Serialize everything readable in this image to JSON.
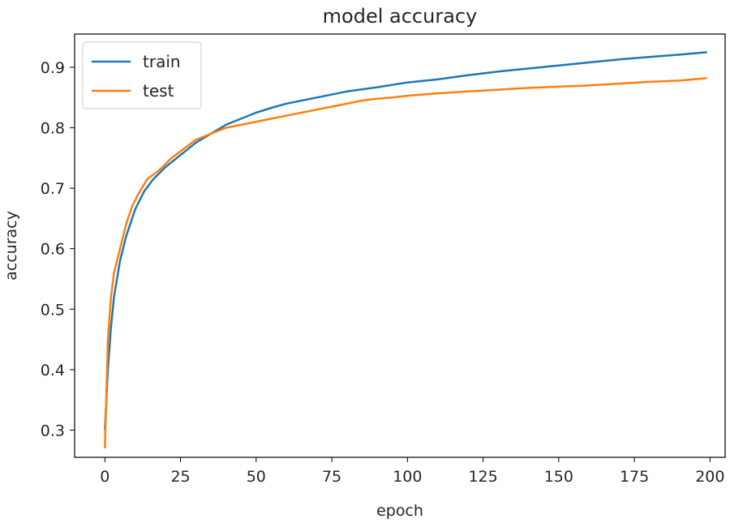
{
  "chart_data": {
    "type": "line",
    "title": "model accuracy",
    "xlabel": "epoch",
    "ylabel": "accuracy",
    "xlim": [
      -10,
      205
    ],
    "ylim": [
      0.255,
      0.955
    ],
    "xticks": [
      0,
      25,
      50,
      75,
      100,
      125,
      150,
      175,
      200
    ],
    "yticks": [
      0.3,
      0.4,
      0.5,
      0.6,
      0.7,
      0.8,
      0.9
    ],
    "grid": false,
    "legend_position": "top-left",
    "series": [
      {
        "name": "train",
        "color": "#1f77b4",
        "points": [
          [
            0,
            0.3
          ],
          [
            1,
            0.4
          ],
          [
            2,
            0.47
          ],
          [
            3,
            0.52
          ],
          [
            5,
            0.58
          ],
          [
            7,
            0.62
          ],
          [
            10,
            0.665
          ],
          [
            13,
            0.695
          ],
          [
            16,
            0.715
          ],
          [
            20,
            0.735
          ],
          [
            25,
            0.755
          ],
          [
            30,
            0.775
          ],
          [
            35,
            0.79
          ],
          [
            40,
            0.805
          ],
          [
            45,
            0.815
          ],
          [
            50,
            0.825
          ],
          [
            55,
            0.833
          ],
          [
            60,
            0.84
          ],
          [
            70,
            0.85
          ],
          [
            80,
            0.86
          ],
          [
            90,
            0.867
          ],
          [
            100,
            0.875
          ],
          [
            110,
            0.88
          ],
          [
            120,
            0.887
          ],
          [
            130,
            0.893
          ],
          [
            140,
            0.898
          ],
          [
            150,
            0.903
          ],
          [
            160,
            0.908
          ],
          [
            170,
            0.913
          ],
          [
            180,
            0.917
          ],
          [
            190,
            0.921
          ],
          [
            199,
            0.925
          ]
        ]
      },
      {
        "name": "test",
        "color": "#ff7f0e",
        "points": [
          [
            0,
            0.27
          ],
          [
            1,
            0.45
          ],
          [
            2,
            0.52
          ],
          [
            3,
            0.56
          ],
          [
            5,
            0.6
          ],
          [
            7,
            0.64
          ],
          [
            9,
            0.67
          ],
          [
            11,
            0.69
          ],
          [
            14,
            0.715
          ],
          [
            18,
            0.73
          ],
          [
            22,
            0.75
          ],
          [
            26,
            0.765
          ],
          [
            30,
            0.78
          ],
          [
            35,
            0.79
          ],
          [
            40,
            0.8
          ],
          [
            45,
            0.805
          ],
          [
            50,
            0.81
          ],
          [
            55,
            0.815
          ],
          [
            60,
            0.82
          ],
          [
            65,
            0.825
          ],
          [
            70,
            0.83
          ],
          [
            75,
            0.835
          ],
          [
            80,
            0.84
          ],
          [
            85,
            0.845
          ],
          [
            90,
            0.848
          ],
          [
            95,
            0.85
          ],
          [
            100,
            0.853
          ],
          [
            110,
            0.857
          ],
          [
            120,
            0.86
          ],
          [
            130,
            0.863
          ],
          [
            140,
            0.866
          ],
          [
            150,
            0.868
          ],
          [
            160,
            0.87
          ],
          [
            170,
            0.873
          ],
          [
            180,
            0.876
          ],
          [
            190,
            0.878
          ],
          [
            199,
            0.882
          ]
        ]
      }
    ]
  }
}
